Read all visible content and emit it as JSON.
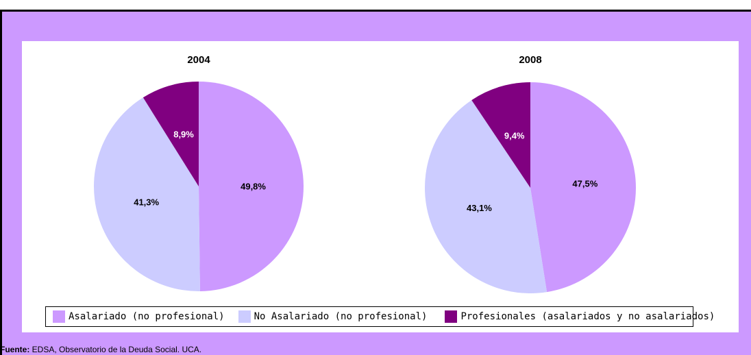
{
  "colors": {
    "frame": "#cc99ff",
    "asalariado": "#cc99ff",
    "no_asalariado": "#ccccff",
    "profesionales": "#800080"
  },
  "chart_data": [
    {
      "type": "pie",
      "title": "2004",
      "series": [
        {
          "name": "Asalariado (no profesional)",
          "value": 49.8,
          "label": "49,8%"
        },
        {
          "name": "No Asalariado (no profesional)",
          "value": 41.3,
          "label": "41,3%"
        },
        {
          "name": "Profesionales (asalariados y no asalariados)",
          "value": 8.9,
          "label": "8,9%"
        }
      ]
    },
    {
      "type": "pie",
      "title": "2008",
      "series": [
        {
          "name": "Asalariado (no profesional)",
          "value": 47.5,
          "label": "47,5%"
        },
        {
          "name": "No Asalariado (no profesional)",
          "value": 43.1,
          "label": "43,1%"
        },
        {
          "name": "Profesionales (asalariados y no asalariados)",
          "value": 9.4,
          "label": "9,4%"
        }
      ]
    }
  ],
  "legend": [
    "Asalariado (no profesional)",
    "No Asalariado (no profesional)",
    "Profesionales (asalariados y no asalariados)"
  ],
  "source": {
    "label": "Fuente:",
    "text": " EDSA, Observatorio de la Deuda Social. UCA."
  }
}
